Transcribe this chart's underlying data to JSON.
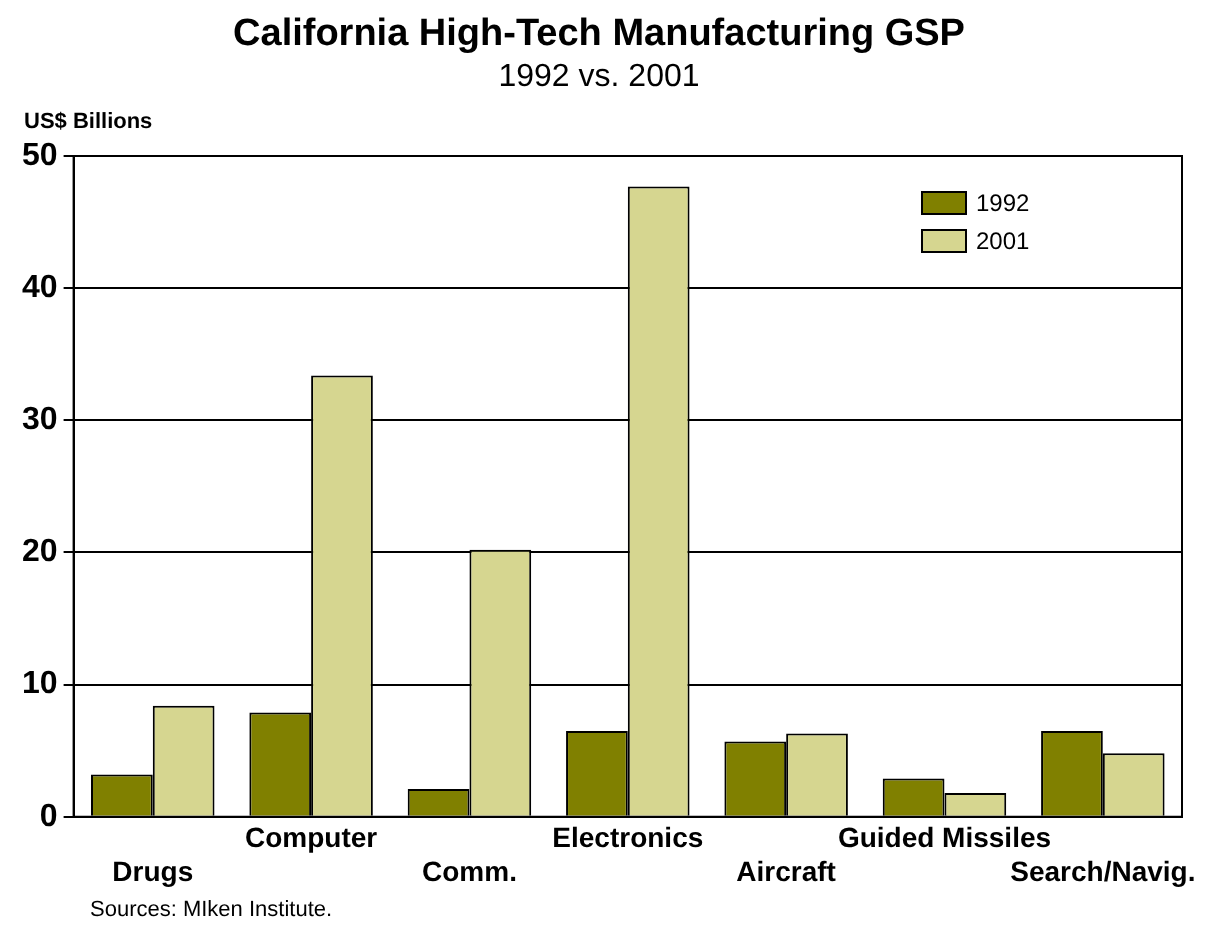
{
  "chart_data": {
    "type": "bar",
    "title": "California High-Tech Manufacturing GSP",
    "subtitle": "1992 vs. 2001",
    "ylabel": "US$ Billions",
    "categories": [
      "Drugs",
      "Computer",
      "Comm.",
      "Electronics",
      "Aircraft",
      "Guided Missiles",
      "Search/Navig."
    ],
    "series": [
      {
        "name": "1992",
        "color": "#808000",
        "values": [
          3.2,
          7.9,
          2.1,
          6.5,
          5.7,
          2.9,
          6.5
        ]
      },
      {
        "name": "2001",
        "color": "#d6d690",
        "values": [
          8.4,
          33.4,
          20.2,
          47.7,
          6.3,
          1.8,
          4.8
        ]
      }
    ],
    "ylim": [
      0,
      50
    ],
    "yticks": [
      0,
      10,
      20,
      30,
      40,
      50
    ],
    "grid": "y",
    "legend": "top right",
    "annotations": [
      "Sources: MIken Institute."
    ]
  }
}
